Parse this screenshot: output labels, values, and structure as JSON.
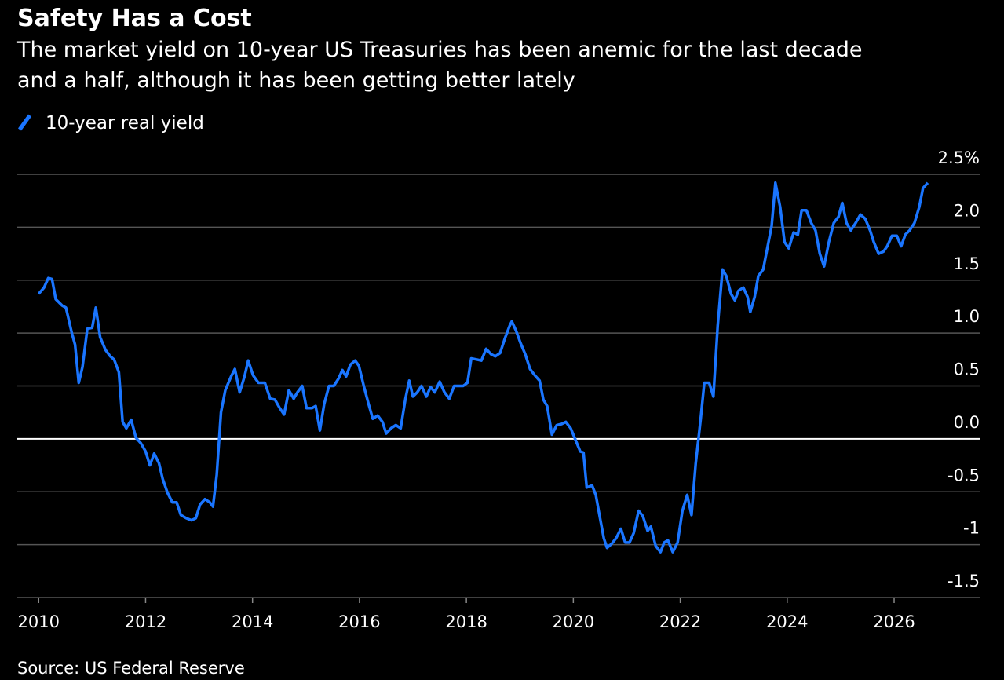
{
  "chart_data": {
    "type": "line",
    "title": "Safety Has a Cost",
    "subtitle": [
      "The market yield on 10-year US Treasuries has been anemic for the last decade",
      "and a half, although it has been getting better lately"
    ],
    "source": "Source: US Federal Reserve",
    "x": [
      2010.0,
      2010.1,
      2010.18,
      2010.25,
      2010.32,
      2010.44,
      2010.51,
      2010.62,
      2010.68,
      2010.75,
      2010.82,
      2010.91,
      2011.0,
      2011.07,
      2011.15,
      2011.25,
      2011.34,
      2011.41,
      2011.5,
      2011.57,
      2011.64,
      2011.73,
      2011.82,
      2011.91,
      2012.0,
      2012.08,
      2012.16,
      2012.25,
      2012.32,
      2012.41,
      2012.5,
      2012.58,
      2012.66,
      2012.76,
      2012.86,
      2012.94,
      2013.02,
      2013.11,
      2013.2,
      2013.26,
      2013.33,
      2013.41,
      2013.49,
      2013.6,
      2013.67,
      2013.76,
      2013.85,
      2013.92,
      2014.01,
      2014.11,
      2014.23,
      2014.33,
      2014.42,
      2014.51,
      2014.59,
      2014.68,
      2014.77,
      2014.84,
      2014.93,
      2015.01,
      2015.11,
      2015.18,
      2015.26,
      2015.34,
      2015.43,
      2015.52,
      2015.61,
      2015.68,
      2015.75,
      2015.83,
      2015.92,
      2015.99,
      2016.08,
      2016.17,
      2016.25,
      2016.34,
      2016.43,
      2016.5,
      2016.59,
      2016.68,
      2016.77,
      2016.86,
      2016.93,
      2017.0,
      2017.08,
      2017.16,
      2017.25,
      2017.33,
      2017.41,
      2017.5,
      2017.59,
      2017.68,
      2017.77,
      2017.85,
      2017.94,
      2018.02,
      2018.09,
      2018.19,
      2018.28,
      2018.37,
      2018.46,
      2018.54,
      2018.63,
      2018.72,
      2018.81,
      2018.85,
      2018.93,
      2019.01,
      2019.1,
      2019.19,
      2019.28,
      2019.37,
      2019.44,
      2019.51,
      2019.6,
      2019.69,
      2019.78,
      2019.86,
      2019.95,
      2020.04,
      2020.13,
      2020.19,
      2020.25,
      2020.35,
      2020.42,
      2020.5,
      2020.57,
      2020.63,
      2020.72,
      2020.8,
      2020.89,
      2020.97,
      2021.05,
      2021.13,
      2021.22,
      2021.3,
      2021.39,
      2021.45,
      2021.54,
      2021.63,
      2021.7,
      2021.77,
      2021.86,
      2021.95,
      2022.04,
      2022.13,
      2022.21,
      2022.29,
      2022.38,
      2022.45,
      2022.54,
      2022.62,
      2022.7,
      2022.79,
      2022.86,
      2022.95,
      2023.02,
      2023.09,
      2023.18,
      2023.26,
      2023.31,
      2023.39,
      2023.46,
      2023.55,
      2023.62,
      2023.71,
      2023.78,
      2023.87,
      2023.95,
      2024.03,
      2024.12,
      2024.2,
      2024.27,
      2024.36,
      2024.45,
      2024.53,
      2024.61,
      2024.69,
      2024.78,
      2024.87,
      2024.96,
      2025.03,
      2025.11,
      2025.19,
      2025.28,
      2025.37,
      2025.46,
      2025.55,
      2025.62,
      2025.71,
      2025.8,
      2025.87,
      2025.96,
      2026.05,
      2026.13,
      2026.21,
      2026.29,
      2026.38,
      2026.47,
      2026.54,
      2026.63
    ],
    "series": [
      {
        "name": "10-year real yield",
        "color": "#1a75ff",
        "values": [
          1.37,
          1.43,
          1.52,
          1.51,
          1.32,
          1.26,
          1.24,
          1.0,
          0.89,
          0.53,
          0.68,
          1.04,
          1.05,
          1.24,
          0.96,
          0.84,
          0.78,
          0.75,
          0.63,
          0.16,
          0.1,
          0.18,
          0.01,
          -0.04,
          -0.12,
          -0.25,
          -0.14,
          -0.23,
          -0.38,
          -0.51,
          -0.6,
          -0.6,
          -0.72,
          -0.75,
          -0.77,
          -0.75,
          -0.62,
          -0.57,
          -0.6,
          -0.64,
          -0.34,
          0.25,
          0.46,
          0.59,
          0.66,
          0.44,
          0.59,
          0.74,
          0.6,
          0.53,
          0.53,
          0.38,
          0.37,
          0.29,
          0.23,
          0.46,
          0.38,
          0.44,
          0.5,
          0.29,
          0.29,
          0.31,
          0.08,
          0.33,
          0.5,
          0.5,
          0.57,
          0.65,
          0.59,
          0.7,
          0.74,
          0.69,
          0.5,
          0.33,
          0.19,
          0.22,
          0.16,
          0.05,
          0.1,
          0.13,
          0.1,
          0.38,
          0.55,
          0.4,
          0.44,
          0.5,
          0.4,
          0.49,
          0.44,
          0.54,
          0.44,
          0.38,
          0.5,
          0.5,
          0.5,
          0.53,
          0.76,
          0.75,
          0.74,
          0.85,
          0.8,
          0.78,
          0.81,
          0.95,
          1.07,
          1.11,
          1.02,
          0.91,
          0.8,
          0.66,
          0.6,
          0.55,
          0.37,
          0.31,
          0.04,
          0.13,
          0.14,
          0.16,
          0.1,
          -0.01,
          -0.12,
          -0.13,
          -0.46,
          -0.44,
          -0.53,
          -0.75,
          -0.94,
          -1.03,
          -0.99,
          -0.94,
          -0.85,
          -0.98,
          -0.98,
          -0.89,
          -0.68,
          -0.73,
          -0.87,
          -0.83,
          -1.01,
          -1.07,
          -0.98,
          -0.96,
          -1.07,
          -0.98,
          -0.68,
          -0.53,
          -0.72,
          -0.23,
          0.18,
          0.53,
          0.53,
          0.4,
          1.07,
          1.6,
          1.54,
          1.37,
          1.31,
          1.4,
          1.43,
          1.34,
          1.2,
          1.34,
          1.54,
          1.6,
          1.78,
          2.01,
          2.42,
          2.19,
          1.86,
          1.8,
          1.95,
          1.93,
          2.16,
          2.16,
          2.04,
          1.97,
          1.75,
          1.63,
          1.86,
          2.04,
          2.1,
          2.23,
          2.04,
          1.97,
          2.04,
          2.12,
          2.08,
          1.97,
          1.86,
          1.75,
          1.77,
          1.82,
          1.92,
          1.92,
          1.82,
          1.93,
          1.97,
          2.04,
          2.19,
          2.37,
          2.42
        ]
      }
    ],
    "xlim": [
      2009.6,
      2027.6
    ],
    "xticks": [
      2010,
      2012,
      2014,
      2016,
      2018,
      2020,
      2022,
      2024,
      2026
    ],
    "ylim": [
      -1.5,
      2.5
    ],
    "yticks": [
      -1.5,
      -1,
      -0.5,
      {
        "value": 0,
        "label": "0.0"
      },
      0.5,
      {
        "value": 1,
        "label": "1.0"
      },
      {
        "value": 1.5,
        "label": "1.5"
      },
      {
        "value": 2,
        "label": "2.0"
      },
      {
        "value": 2.5,
        "label": "2.5%"
      }
    ],
    "grid": true
  }
}
